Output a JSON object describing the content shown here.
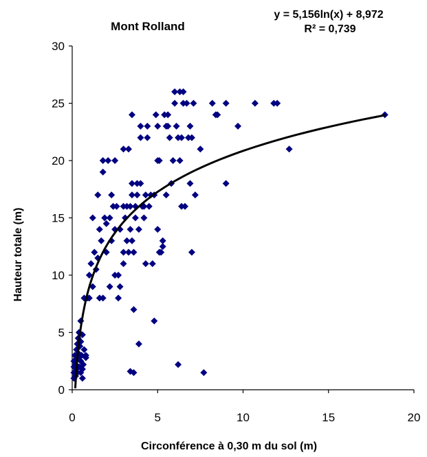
{
  "chart_data": {
    "type": "scatter",
    "title": "Mont Rolland",
    "xlabel": "Circonférence à 0,30 m du sol (m)",
    "ylabel": "Hauteur totale (m)",
    "xlim": [
      0,
      20
    ],
    "ylim": [
      0,
      30
    ],
    "x_ticks": [
      "0",
      "5",
      "10",
      "15",
      "20"
    ],
    "y_ticks": [
      "0",
      "5",
      "10",
      "15",
      "20",
      "25",
      "30"
    ],
    "grid": false,
    "marker_color": "#000080",
    "trendline": {
      "type": "log",
      "a": 5.156,
      "b": 8.972,
      "color": "#000000",
      "equation": "y = 5,156ln(x)  + 8,972",
      "r_squared": "R² = 0,739"
    },
    "points": [
      [
        0.1,
        1.0
      ],
      [
        0.1,
        1.5
      ],
      [
        0.1,
        2.0
      ],
      [
        0.1,
        2.5
      ],
      [
        0.15,
        3.0
      ],
      [
        0.2,
        1.2
      ],
      [
        0.2,
        2.2
      ],
      [
        0.25,
        1.8
      ],
      [
        0.25,
        3.5
      ],
      [
        0.3,
        4.0
      ],
      [
        0.3,
        2.8
      ],
      [
        0.3,
        1.5
      ],
      [
        0.35,
        4.5
      ],
      [
        0.35,
        3.2
      ],
      [
        0.4,
        2.0
      ],
      [
        0.4,
        5.0
      ],
      [
        0.45,
        3.8
      ],
      [
        0.5,
        4.2
      ],
      [
        0.5,
        6.0
      ],
      [
        0.5,
        2.5
      ],
      [
        0.55,
        3.0
      ],
      [
        0.6,
        1.8
      ],
      [
        0.6,
        4.8
      ],
      [
        0.65,
        2.2
      ],
      [
        0.7,
        3.5
      ],
      [
        0.7,
        8.0
      ],
      [
        0.8,
        2.8
      ],
      [
        0.8,
        3.0
      ],
      [
        0.5,
        1.5
      ],
      [
        0.6,
        1.0
      ],
      [
        0.9,
        8.0
      ],
      [
        1.0,
        10.0
      ],
      [
        1.0,
        8.0
      ],
      [
        1.1,
        11.0
      ],
      [
        1.2,
        9.0
      ],
      [
        1.2,
        15.0
      ],
      [
        1.3,
        12.0
      ],
      [
        1.4,
        10.5
      ],
      [
        1.5,
        11.5
      ],
      [
        1.5,
        17.0
      ],
      [
        1.6,
        8.0
      ],
      [
        1.6,
        14.0
      ],
      [
        1.7,
        13.0
      ],
      [
        1.8,
        8.0
      ],
      [
        1.8,
        19.0
      ],
      [
        1.8,
        20.0
      ],
      [
        1.9,
        15.0
      ],
      [
        2.0,
        12.0
      ],
      [
        2.0,
        14.5
      ],
      [
        2.1,
        20.0
      ],
      [
        2.2,
        15.0
      ],
      [
        2.2,
        9.0
      ],
      [
        2.3,
        13.0
      ],
      [
        2.3,
        17.0
      ],
      [
        2.4,
        16.0
      ],
      [
        2.5,
        10.0
      ],
      [
        2.5,
        14.0
      ],
      [
        2.5,
        20.0
      ],
      [
        2.6,
        16.0
      ],
      [
        2.7,
        8.0
      ],
      [
        2.7,
        10.0
      ],
      [
        2.8,
        9.0
      ],
      [
        2.8,
        14.0
      ],
      [
        3.0,
        16.0
      ],
      [
        3.0,
        21.0
      ],
      [
        3.0,
        12.0
      ],
      [
        3.0,
        11.0
      ],
      [
        3.1,
        15.0
      ],
      [
        3.2,
        16.0
      ],
      [
        3.2,
        13.0
      ],
      [
        3.3,
        21.0
      ],
      [
        3.3,
        12.0
      ],
      [
        3.4,
        16.0
      ],
      [
        3.4,
        14.0
      ],
      [
        3.5,
        24.0
      ],
      [
        3.5,
        18.0
      ],
      [
        3.5,
        17.0
      ],
      [
        3.5,
        13.0
      ],
      [
        3.6,
        12.0
      ],
      [
        3.6,
        7.0
      ],
      [
        3.6,
        1.5
      ],
      [
        3.7,
        15.0
      ],
      [
        3.7,
        16.0
      ],
      [
        3.8,
        18.0
      ],
      [
        3.8,
        17.0
      ],
      [
        3.9,
        4.0
      ],
      [
        3.9,
        14.0
      ],
      [
        4.0,
        22.0
      ],
      [
        4.0,
        23.0
      ],
      [
        4.0,
        18.0
      ],
      [
        4.1,
        16.0
      ],
      [
        4.2,
        16.0
      ],
      [
        4.2,
        15.0
      ],
      [
        4.3,
        11.0
      ],
      [
        4.3,
        17.0
      ],
      [
        4.4,
        23.0
      ],
      [
        4.4,
        22.0
      ],
      [
        4.5,
        16.0
      ],
      [
        4.6,
        17.0
      ],
      [
        4.7,
        11.0
      ],
      [
        4.8,
        17.0
      ],
      [
        4.8,
        6.0
      ],
      [
        4.9,
        24.0
      ],
      [
        5.0,
        23.0
      ],
      [
        5.0,
        20.0
      ],
      [
        5.0,
        14.0
      ],
      [
        5.1,
        12.0
      ],
      [
        5.1,
        20.0
      ],
      [
        5.2,
        12.0
      ],
      [
        5.3,
        12.5
      ],
      [
        5.3,
        13.0
      ],
      [
        5.4,
        24.0
      ],
      [
        5.5,
        23.0
      ],
      [
        5.5,
        17.0
      ],
      [
        5.6,
        24.0
      ],
      [
        5.6,
        23.0
      ],
      [
        5.7,
        22.0
      ],
      [
        5.8,
        18.0
      ],
      [
        5.9,
        20.0
      ],
      [
        6.0,
        26.0
      ],
      [
        6.0,
        25.0
      ],
      [
        6.1,
        23.0
      ],
      [
        6.2,
        22.0
      ],
      [
        6.3,
        20.0
      ],
      [
        6.3,
        26.0
      ],
      [
        6.4,
        22.0
      ],
      [
        6.4,
        16.0
      ],
      [
        6.5,
        25.0
      ],
      [
        6.5,
        26.0
      ],
      [
        6.6,
        16.0
      ],
      [
        6.7,
        25.0
      ],
      [
        6.8,
        22.0
      ],
      [
        6.9,
        23.0
      ],
      [
        6.9,
        18.0
      ],
      [
        7.0,
        12.0
      ],
      [
        7.0,
        22.0
      ],
      [
        7.1,
        25.0
      ],
      [
        7.2,
        17.0
      ],
      [
        7.5,
        21.0
      ],
      [
        8.2,
        25.0
      ],
      [
        8.4,
        24.0
      ],
      [
        8.5,
        24.0
      ],
      [
        9.0,
        25.0
      ],
      [
        9.0,
        18.0
      ],
      [
        9.7,
        23.0
      ],
      [
        10.7,
        25.0
      ],
      [
        11.8,
        25.0
      ],
      [
        12.0,
        25.0
      ],
      [
        12.7,
        21.0
      ],
      [
        18.3,
        24.0
      ],
      [
        6.2,
        2.2
      ],
      [
        7.7,
        1.5
      ],
      [
        3.4,
        1.6
      ]
    ]
  }
}
